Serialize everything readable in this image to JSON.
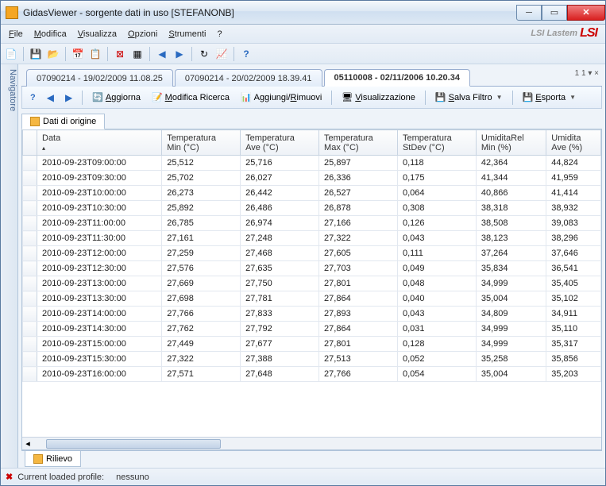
{
  "window": {
    "title": "GidasViewer - sorgente dati in uso  [STEFANONB]"
  },
  "brand": {
    "text": "LSI Lastem",
    "logo": "LSI"
  },
  "menu": {
    "file": "File",
    "modifica": "Modifica",
    "visualizza": "Visualizza",
    "opzioni": "Opzioni",
    "strumenti": "Strumenti",
    "help": "?"
  },
  "doc_tabs": {
    "t1": "07090214 - 19/02/2009 11.08.25",
    "t2": "07090214 - 20/02/2009 18.39.41",
    "t3": "05110008 - 02/11/2006 10.20.34",
    "right": "1 1 ▾ ×"
  },
  "inner_toolbar": {
    "aggiorna": "Aggiorna",
    "modifica_ricerca": "Modifica Ricerca",
    "aggiungi_rimuovi": "Aggiungi/Rimuovi",
    "visualizzazione": "Visualizzazione",
    "salva_filtro": "Salva Filtro",
    "esporta": "Esporta"
  },
  "sub_tab": {
    "label": "Dati di origine"
  },
  "nav_strip": {
    "label": "Navigatore"
  },
  "columns": [
    {
      "h1": "Data",
      "h2": ""
    },
    {
      "h1": "Temperatura",
      "h2": "Min (°C)"
    },
    {
      "h1": "Temperatura",
      "h2": "Ave (°C)"
    },
    {
      "h1": "Temperatura",
      "h2": "Max (°C)"
    },
    {
      "h1": "Temperatura",
      "h2": "StDev (°C)"
    },
    {
      "h1": "UmiditaRel",
      "h2": "Min (%)"
    },
    {
      "h1": "Umidita",
      "h2": "Ave (%)"
    }
  ],
  "rows": [
    [
      "2010-09-23T09:00:00",
      "25,512",
      "25,716",
      "25,897",
      "0,118",
      "42,364",
      "44,824"
    ],
    [
      "2010-09-23T09:30:00",
      "25,702",
      "26,027",
      "26,336",
      "0,175",
      "41,344",
      "41,959"
    ],
    [
      "2010-09-23T10:00:00",
      "26,273",
      "26,442",
      "26,527",
      "0,064",
      "40,866",
      "41,414"
    ],
    [
      "2010-09-23T10:30:00",
      "25,892",
      "26,486",
      "26,878",
      "0,308",
      "38,318",
      "38,932"
    ],
    [
      "2010-09-23T11:00:00",
      "26,785",
      "26,974",
      "27,166",
      "0,126",
      "38,508",
      "39,083"
    ],
    [
      "2010-09-23T11:30:00",
      "27,161",
      "27,248",
      "27,322",
      "0,043",
      "38,123",
      "38,296"
    ],
    [
      "2010-09-23T12:00:00",
      "27,259",
      "27,468",
      "27,605",
      "0,111",
      "37,264",
      "37,646"
    ],
    [
      "2010-09-23T12:30:00",
      "27,576",
      "27,635",
      "27,703",
      "0,049",
      "35,834",
      "36,541"
    ],
    [
      "2010-09-23T13:00:00",
      "27,669",
      "27,750",
      "27,801",
      "0,048",
      "34,999",
      "35,405"
    ],
    [
      "2010-09-23T13:30:00",
      "27,698",
      "27,781",
      "27,864",
      "0,040",
      "35,004",
      "35,102"
    ],
    [
      "2010-09-23T14:00:00",
      "27,766",
      "27,833",
      "27,893",
      "0,043",
      "34,809",
      "34,911"
    ],
    [
      "2010-09-23T14:30:00",
      "27,762",
      "27,792",
      "27,864",
      "0,031",
      "34,999",
      "35,110"
    ],
    [
      "2010-09-23T15:00:00",
      "27,449",
      "27,677",
      "27,801",
      "0,128",
      "34,999",
      "35,317"
    ],
    [
      "2010-09-23T15:30:00",
      "27,322",
      "27,388",
      "27,513",
      "0,052",
      "35,258",
      "35,856"
    ],
    [
      "2010-09-23T16:00:00",
      "27,571",
      "27,648",
      "27,766",
      "0,054",
      "35,004",
      "35,203"
    ]
  ],
  "lower_tab": {
    "label": "Rilievo"
  },
  "status": {
    "prefix": "Current loaded profile:",
    "value": "nessuno"
  },
  "colors": {
    "accent_blue": "#3a76c4",
    "close_red": "#d92020",
    "grid_border": "#c8d4e2",
    "header_grad_top": "#fdfdfd",
    "header_grad_bot": "#eef2f7"
  }
}
